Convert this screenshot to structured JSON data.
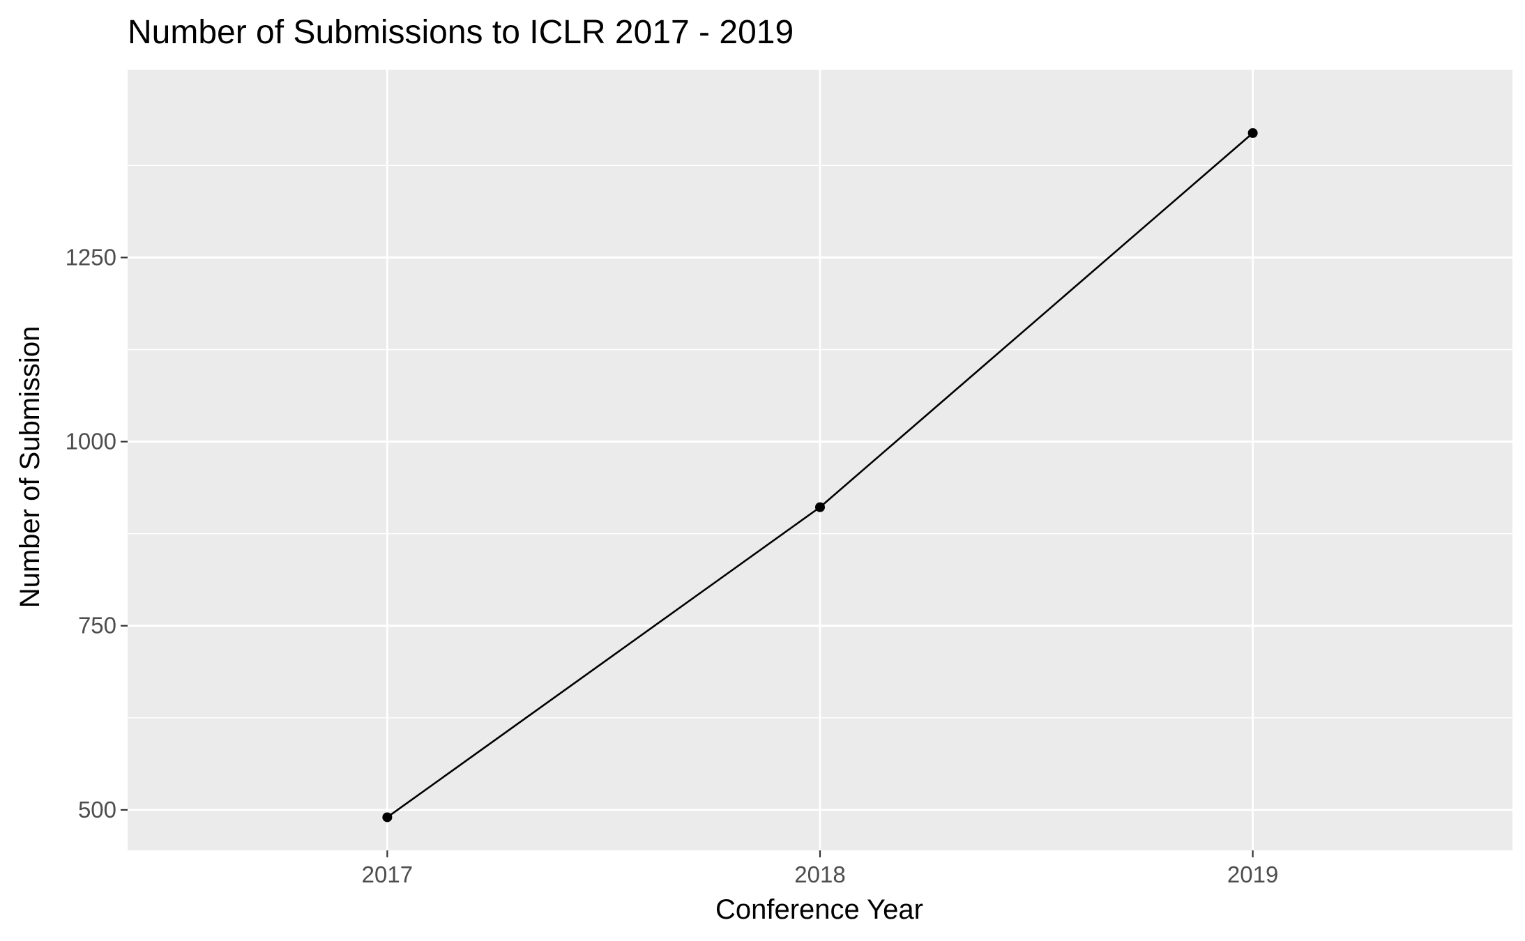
{
  "chart_data": {
    "type": "line",
    "title": "Number of Submissions to ICLR 2017 - 2019",
    "xlabel": "Conference Year",
    "ylabel": "Number of Submission",
    "categories": [
      "2017",
      "2018",
      "2019"
    ],
    "series": [
      {
        "values": [
          490,
          911,
          1419
        ]
      }
    ],
    "ylim": [
      445,
      1505
    ],
    "yticks": [
      500,
      750,
      1000,
      1250
    ],
    "ytick_labels": [
      "500",
      "750",
      "1000",
      "1250"
    ],
    "grid": true,
    "legend": "none",
    "colors": {
      "panel_background": "#EBEBEB",
      "grid": "#FFFFFF",
      "line": "#000000",
      "point": "#000000",
      "tick_text": "#4D4D4D"
    }
  }
}
